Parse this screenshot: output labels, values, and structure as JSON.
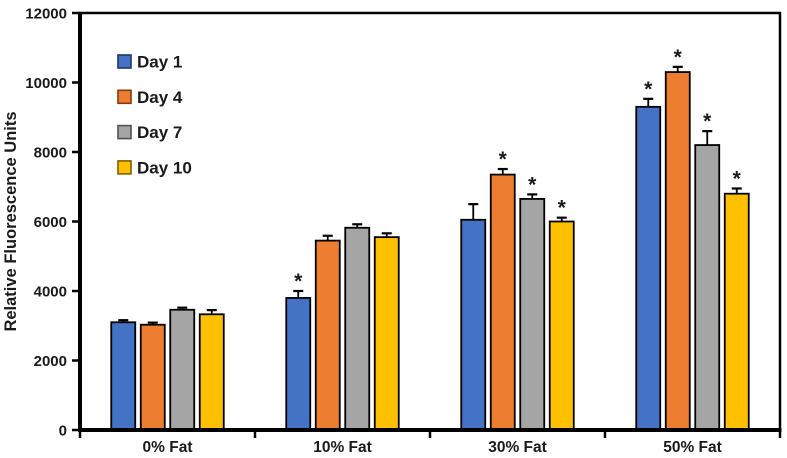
{
  "chart_data": {
    "type": "bar",
    "title": "",
    "xlabel": "",
    "ylabel": "Relative Fluorescence Units",
    "categories": [
      "0% Fat",
      "10% Fat",
      "30% Fat",
      "50% Fat"
    ],
    "series": [
      {
        "name": "Day 1",
        "color": "#4472C4",
        "legend_border": "#1F3864",
        "values": [
          3100,
          3800,
          6050,
          9300
        ],
        "errors": [
          60,
          200,
          450,
          230
        ],
        "significant": [
          false,
          true,
          false,
          true
        ]
      },
      {
        "name": "Day 4",
        "color": "#ED7D31",
        "legend_border": "#843C0C",
        "values": [
          3030,
          5450,
          7350,
          10300
        ],
        "errors": [
          60,
          140,
          160,
          150
        ],
        "significant": [
          false,
          false,
          true,
          true
        ]
      },
      {
        "name": "Day 7",
        "color": "#A5A5A5",
        "legend_border": "#525252",
        "values": [
          3460,
          5820,
          6650,
          8200
        ],
        "errors": [
          60,
          100,
          130,
          400
        ],
        "significant": [
          false,
          false,
          true,
          true
        ]
      },
      {
        "name": "Day 10",
        "color": "#FFC000",
        "legend_border": "#7F6000",
        "values": [
          3330,
          5550,
          6000,
          6800
        ],
        "errors": [
          120,
          110,
          110,
          150
        ],
        "significant": [
          false,
          false,
          true,
          true
        ]
      }
    ],
    "ylim": [
      0,
      12000
    ],
    "ytick_step": 2000,
    "ytick_labels": [
      "0",
      "2000",
      "4000",
      "6000",
      "8000",
      "10000",
      "12000"
    ],
    "grid": false,
    "legend_position": "top-left-inside",
    "sig_marker": "*",
    "bar_outline": "#000000",
    "axis_color": "#000000",
    "text_color": "#1a1a1a",
    "background": "#FFFFFF"
  }
}
